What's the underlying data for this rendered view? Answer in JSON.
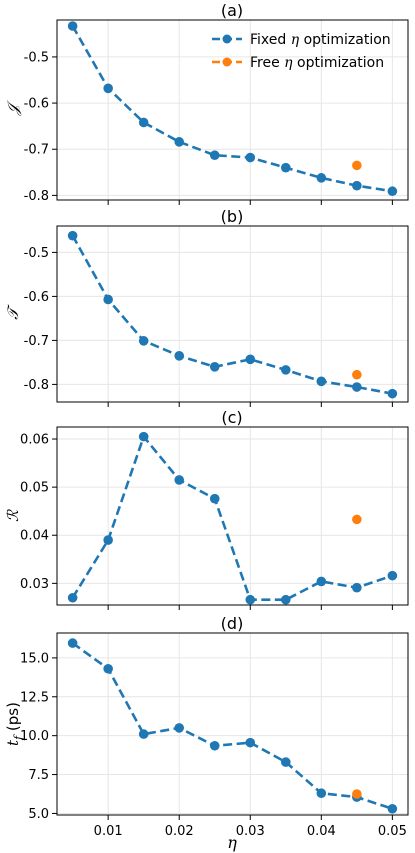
{
  "chart_data": [
    {
      "type": "line",
      "title": "(a)",
      "ylabel": "𝒥",
      "x": [
        0.005,
        0.01,
        0.015,
        0.02,
        0.025,
        0.03,
        0.035,
        0.04,
        0.045,
        0.05
      ],
      "ylim": [
        -0.81,
        -0.42
      ],
      "yticks": [
        -0.5,
        -0.6,
        -0.7,
        -0.8
      ],
      "ytick_labels": [
        "-0.5",
        "-0.6",
        "-0.7",
        "-0.8"
      ],
      "series": [
        {
          "name": "Fixed η optimization",
          "color": "#1f77b4",
          "style": "dashed-markers",
          "values": [
            -0.433,
            -0.568,
            -0.642,
            -0.684,
            -0.713,
            -0.718,
            -0.74,
            -0.762,
            -0.779,
            -0.791
          ]
        },
        {
          "name": "Free η  optimization",
          "color": "#ff7f0e",
          "style": "markers",
          "points": [
            [
              0.045,
              -0.735
            ]
          ]
        }
      ],
      "legend": "top-right",
      "grid": true
    },
    {
      "type": "line",
      "title": "(b)",
      "ylabel": "𝒯",
      "x": [
        0.005,
        0.01,
        0.015,
        0.02,
        0.025,
        0.03,
        0.035,
        0.04,
        0.045,
        0.05
      ],
      "ylim": [
        -0.84,
        -0.44
      ],
      "yticks": [
        -0.5,
        -0.6,
        -0.7,
        -0.8
      ],
      "ytick_labels": [
        "-0.5",
        "-0.6",
        "-0.7",
        "-0.8"
      ],
      "series": [
        {
          "name": "Fixed η optimization",
          "color": "#1f77b4",
          "style": "dashed-markers",
          "values": [
            -0.462,
            -0.607,
            -0.701,
            -0.735,
            -0.76,
            -0.743,
            -0.767,
            -0.793,
            -0.806,
            -0.821
          ]
        },
        {
          "name": "Free η  optimization",
          "color": "#ff7f0e",
          "style": "markers",
          "points": [
            [
              0.045,
              -0.778
            ]
          ]
        }
      ],
      "grid": true
    },
    {
      "type": "line",
      "title": "(c)",
      "ylabel": "ℛ",
      "x": [
        0.005,
        0.01,
        0.015,
        0.02,
        0.025,
        0.03,
        0.035,
        0.04,
        0.045,
        0.05
      ],
      "ylim": [
        0.0255,
        0.0625
      ],
      "yticks": [
        0.06,
        0.05,
        0.04,
        0.03
      ],
      "ytick_labels": [
        "0.06",
        "0.05",
        "0.04",
        "0.03"
      ],
      "series": [
        {
          "name": "Fixed η optimization",
          "color": "#1f77b4",
          "style": "dashed-markers",
          "values": [
            0.027,
            0.039,
            0.0605,
            0.0515,
            0.0476,
            0.0266,
            0.0266,
            0.0304,
            0.0291,
            0.0316
          ]
        },
        {
          "name": "Free η  optimization",
          "color": "#ff7f0e",
          "style": "markers",
          "points": [
            [
              0.045,
              0.0433
            ]
          ]
        }
      ],
      "grid": true
    },
    {
      "type": "line",
      "title": "(d)",
      "ylabel": "t_f (ps)",
      "x": [
        0.005,
        0.01,
        0.015,
        0.02,
        0.025,
        0.03,
        0.035,
        0.04,
        0.045,
        0.05
      ],
      "ylim": [
        4.9,
        16.6
      ],
      "yticks": [
        15.0,
        12.5,
        10.0,
        7.5,
        5.0
      ],
      "ytick_labels": [
        "15.0",
        "12.5",
        "10.0",
        "7.5",
        "5.0"
      ],
      "xlabel": "η",
      "xticks": [
        0.01,
        0.02,
        0.03,
        0.04,
        0.05
      ],
      "xtick_labels": [
        "0.01",
        "0.02",
        "0.03",
        "0.04",
        "0.05"
      ],
      "series": [
        {
          "name": "Fixed η optimization",
          "color": "#1f77b4",
          "style": "dashed-markers",
          "values": [
            15.95,
            14.3,
            10.1,
            10.5,
            9.35,
            9.55,
            8.3,
            6.3,
            6.05,
            5.3
          ]
        },
        {
          "name": "Free η  optimization",
          "color": "#ff7f0e",
          "style": "markers",
          "points": [
            [
              0.045,
              6.25
            ]
          ]
        }
      ],
      "grid": true
    }
  ],
  "xlim": [
    0.0028,
    0.0522
  ],
  "legend": {
    "fixed_prefix": "Fixed ",
    "fixed_eta": "η",
    "fixed_suffix": " optimization",
    "free_prefix": "Free ",
    "free_eta": "η",
    "free_suffix": "  optimization"
  },
  "ylabel_d_main": "t",
  "ylabel_d_sub": "f",
  "ylabel_d_unit": " (ps)"
}
